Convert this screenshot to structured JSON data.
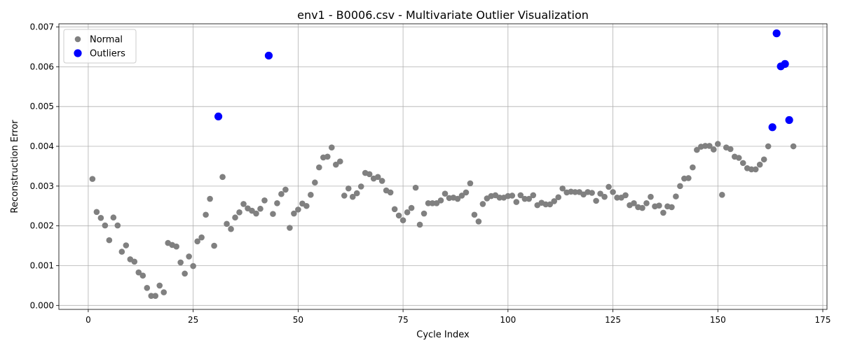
{
  "chart_data": {
    "type": "scatter",
    "title": "env1 - B0006.csv - Multivariate Outlier Visualization",
    "xlabel": "Cycle Index",
    "ylabel": "Reconstruction Error",
    "xlim": [
      -7,
      176
    ],
    "ylim": [
      -0.0001,
      0.00708
    ],
    "xticks": [
      0,
      25,
      50,
      75,
      100,
      125,
      150,
      175
    ],
    "xtick_labels": [
      "0",
      "25",
      "50",
      "75",
      "100",
      "125",
      "150",
      "175"
    ],
    "yticks": [
      0.0,
      0.001,
      0.002,
      0.003,
      0.004,
      0.005,
      0.006,
      0.007
    ],
    "ytick_labels": [
      "0.000",
      "0.001",
      "0.002",
      "0.003",
      "0.004",
      "0.005",
      "0.006",
      "0.007"
    ],
    "grid": true,
    "legend_position": "top-left",
    "series": [
      {
        "name": "Normal",
        "color": "#808080",
        "x": [
          1,
          2,
          3,
          4,
          5,
          6,
          7,
          8,
          9,
          10,
          11,
          12,
          13,
          14,
          15,
          16,
          17,
          18,
          19,
          20,
          21,
          22,
          23,
          24,
          25,
          26,
          27,
          28,
          29,
          30,
          32,
          33,
          34,
          35,
          36,
          37,
          38,
          39,
          40,
          41,
          42,
          44,
          45,
          46,
          47,
          48,
          49,
          50,
          51,
          52,
          53,
          54,
          55,
          56,
          57,
          58,
          59,
          60,
          61,
          62,
          63,
          64,
          65,
          66,
          67,
          68,
          69,
          70,
          71,
          72,
          73,
          74,
          75,
          76,
          77,
          78,
          79,
          80,
          81,
          82,
          83,
          84,
          85,
          86,
          87,
          88,
          89,
          90,
          91,
          92,
          93,
          94,
          95,
          96,
          97,
          98,
          99,
          100,
          101,
          102,
          103,
          104,
          105,
          106,
          107,
          108,
          109,
          110,
          111,
          112,
          113,
          114,
          115,
          116,
          117,
          118,
          119,
          120,
          121,
          122,
          123,
          124,
          125,
          126,
          127,
          128,
          129,
          130,
          131,
          132,
          133,
          134,
          135,
          136,
          137,
          138,
          139,
          140,
          141,
          142,
          143,
          144,
          145,
          146,
          147,
          148,
          149,
          150,
          151,
          152,
          153,
          154,
          155,
          156,
          157,
          158,
          159,
          160,
          161,
          162,
          168
        ],
        "y": [
          0.00318,
          0.00235,
          0.0022,
          0.00201,
          0.00164,
          0.00221,
          0.00201,
          0.00135,
          0.00151,
          0.00116,
          0.0011,
          0.00083,
          0.00075,
          0.00044,
          0.00024,
          0.00024,
          0.0005,
          0.00033,
          0.00157,
          0.00152,
          0.00148,
          0.00108,
          0.0008,
          0.00123,
          0.00099,
          0.00161,
          0.00171,
          0.00228,
          0.00268,
          0.0015,
          0.00323,
          0.00205,
          0.00192,
          0.00221,
          0.00234,
          0.00255,
          0.00244,
          0.00238,
          0.00231,
          0.00243,
          0.00264,
          0.0023,
          0.00257,
          0.0028,
          0.00291,
          0.00195,
          0.00231,
          0.00241,
          0.00256,
          0.0025,
          0.00278,
          0.00309,
          0.00347,
          0.00372,
          0.00374,
          0.00397,
          0.00354,
          0.00362,
          0.00276,
          0.00294,
          0.00273,
          0.00282,
          0.00299,
          0.00333,
          0.0033,
          0.00319,
          0.00323,
          0.00313,
          0.00289,
          0.00284,
          0.00242,
          0.00226,
          0.00214,
          0.00234,
          0.00245,
          0.00296,
          0.00203,
          0.00231,
          0.00257,
          0.00257,
          0.00257,
          0.00264,
          0.00281,
          0.0027,
          0.00271,
          0.00268,
          0.00276,
          0.00284,
          0.00307,
          0.00228,
          0.00211,
          0.00255,
          0.00269,
          0.00275,
          0.00277,
          0.00271,
          0.00271,
          0.00275,
          0.00276,
          0.0026,
          0.00277,
          0.00268,
          0.00268,
          0.00277,
          0.00252,
          0.00258,
          0.00254,
          0.00254,
          0.00262,
          0.00272,
          0.00294,
          0.00284,
          0.00286,
          0.00285,
          0.00285,
          0.00279,
          0.00285,
          0.00283,
          0.00263,
          0.00281,
          0.00273,
          0.00298,
          0.00285,
          0.00271,
          0.00271,
          0.00277,
          0.00252,
          0.00257,
          0.00247,
          0.00245,
          0.00257,
          0.00273,
          0.00249,
          0.00251,
          0.00233,
          0.00249,
          0.00247,
          0.00274,
          0.003,
          0.00319,
          0.0032,
          0.00347,
          0.00391,
          0.00399,
          0.00401,
          0.00401,
          0.00392,
          0.00406,
          0.00278,
          0.00397,
          0.00393,
          0.00374,
          0.00371,
          0.00358,
          0.00345,
          0.00342,
          0.00342,
          0.00354,
          0.00367,
          0.004,
          0.004
        ]
      },
      {
        "name": "Outliers",
        "color": "#0000ff",
        "x": [
          31,
          43,
          163,
          164,
          165,
          166,
          167
        ],
        "y": [
          0.00475,
          0.00628,
          0.00448,
          0.00684,
          0.00601,
          0.00607,
          0.00466
        ]
      }
    ]
  }
}
